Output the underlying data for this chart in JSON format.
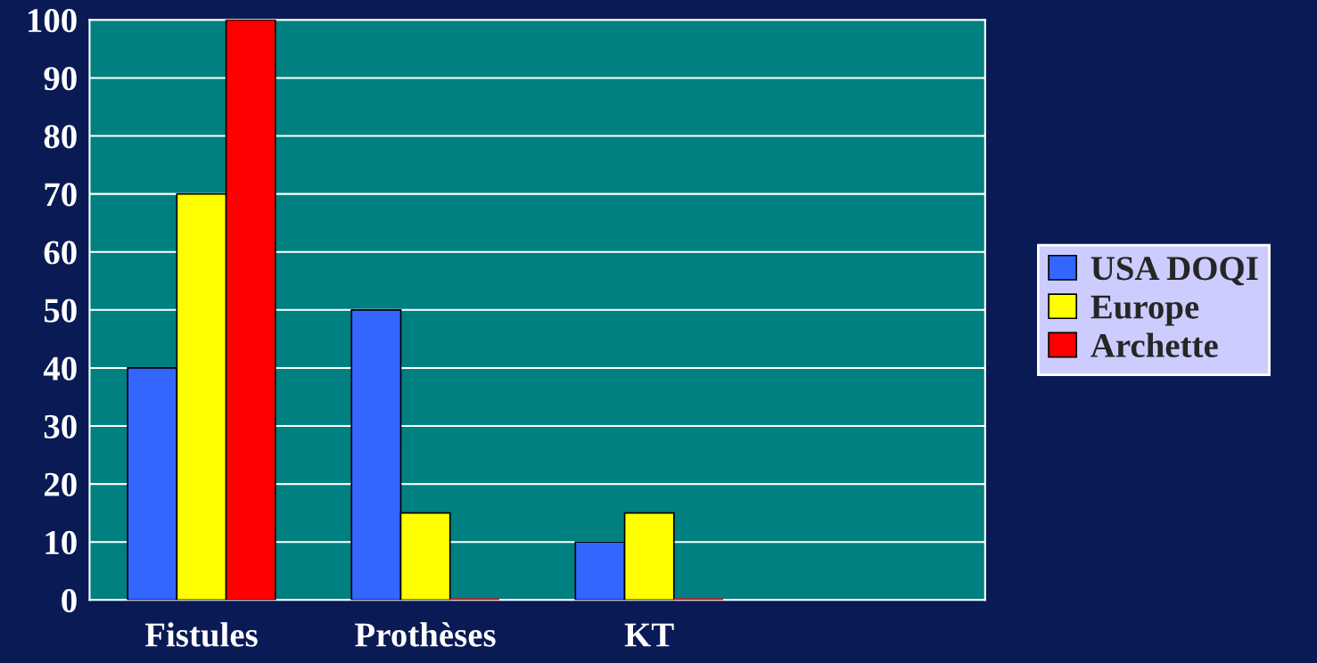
{
  "chart_data": {
    "type": "bar",
    "categories": [
      "Fistules",
      "Prothèses",
      "KT",
      null
    ],
    "series": [
      {
        "name": "USA DOQI",
        "color": "#3366ff",
        "values": [
          40,
          50,
          10,
          null
        ]
      },
      {
        "name": "Europe",
        "color": "#ffff00",
        "values": [
          70,
          15,
          15,
          null
        ]
      },
      {
        "name": "Archette",
        "color": "#ff0000",
        "values": [
          100,
          0,
          0,
          null
        ]
      }
    ],
    "ylim": [
      0,
      100
    ],
    "yticks": [
      0,
      10,
      20,
      30,
      40,
      50,
      60,
      70,
      80,
      90,
      100
    ],
    "grid": "y",
    "legend": "right"
  }
}
